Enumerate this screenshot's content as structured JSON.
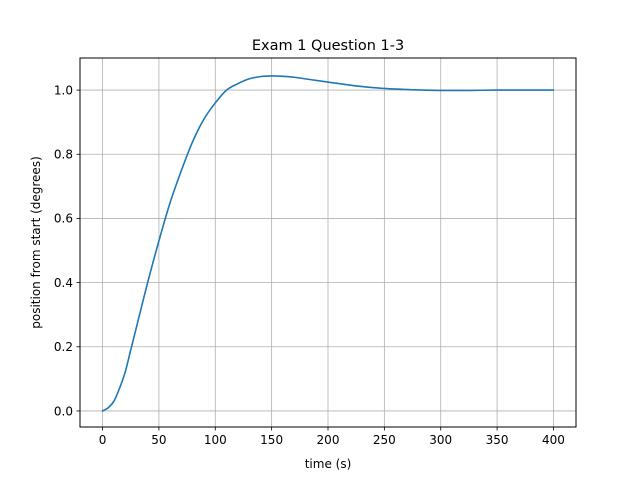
{
  "chart_data": {
    "type": "line",
    "title": "Exam 1 Question 1-3",
    "xlabel": "time (s)",
    "ylabel": "position from start (degrees)",
    "xlim": [
      -20,
      420
    ],
    "ylim": [
      -0.05,
      1.1
    ],
    "xticks": [
      0,
      50,
      100,
      150,
      200,
      250,
      300,
      350,
      400
    ],
    "yticks": [
      0.0,
      0.2,
      0.4,
      0.6,
      0.8,
      1.0
    ],
    "xtick_labels": [
      "0",
      "50",
      "100",
      "150",
      "200",
      "250",
      "300",
      "350",
      "400"
    ],
    "ytick_labels": [
      "0.0",
      "0.2",
      "0.4",
      "0.6",
      "0.8",
      "1.0"
    ],
    "grid": true,
    "series": [
      {
        "name": "position",
        "color": "#1f77b4",
        "x": [
          0,
          5,
          10,
          15,
          20,
          25,
          30,
          40,
          50,
          60,
          70,
          80,
          90,
          100,
          110,
          120,
          130,
          140,
          150,
          160,
          170,
          180,
          200,
          225,
          250,
          275,
          300,
          325,
          350,
          375,
          400
        ],
        "y": [
          0.0,
          0.01,
          0.03,
          0.07,
          0.12,
          0.19,
          0.26,
          0.4,
          0.53,
          0.65,
          0.75,
          0.84,
          0.91,
          0.96,
          1.0,
          1.02,
          1.035,
          1.042,
          1.044,
          1.043,
          1.04,
          1.035,
          1.025,
          1.013,
          1.005,
          1.001,
          0.999,
          0.999,
          1.0,
          1.0,
          1.0
        ]
      }
    ]
  }
}
